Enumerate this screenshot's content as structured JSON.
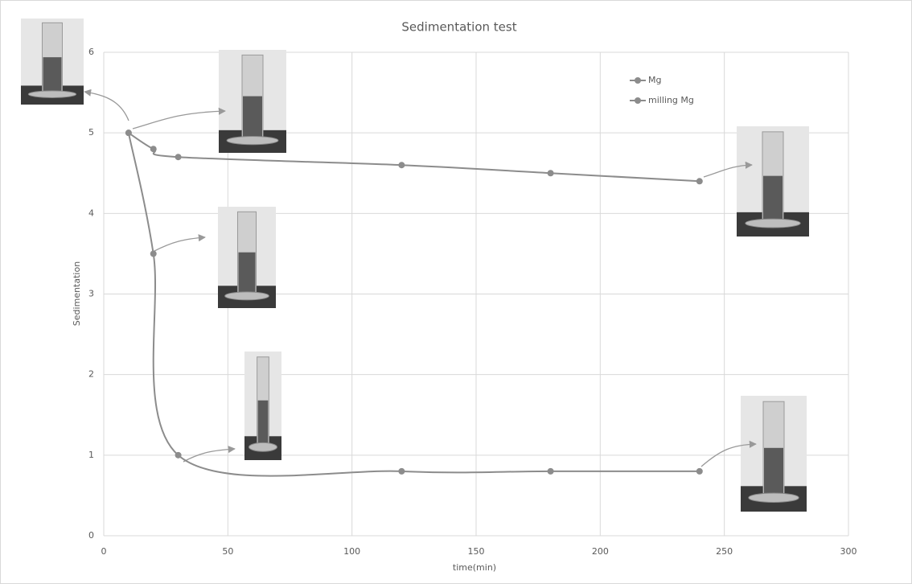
{
  "chart_data": {
    "type": "line",
    "title": "Sedimentation test",
    "x_label": "time(min)",
    "y_label": "Sedimentation",
    "x": [
      10,
      20,
      30,
      120,
      180,
      240
    ],
    "series": [
      {
        "name": "Mg",
        "color": "#8c8c8c",
        "values": [
          5,
          4.8,
          4.7,
          4.6,
          4.5,
          4.4
        ]
      },
      {
        "name": "milling Mg",
        "color": "#8c8c8c",
        "values": [
          5,
          3.5,
          1,
          0.8,
          0.8,
          0.8
        ]
      }
    ],
    "xlim": [
      0,
      300
    ],
    "xticks": [
      0,
      50,
      100,
      150,
      200,
      250,
      300
    ],
    "ylim": [
      0,
      6
    ],
    "yticks": [
      0,
      1,
      2,
      3,
      4,
      5,
      6
    ],
    "grid": true,
    "smooth": true,
    "legend": "top-right"
  }
}
